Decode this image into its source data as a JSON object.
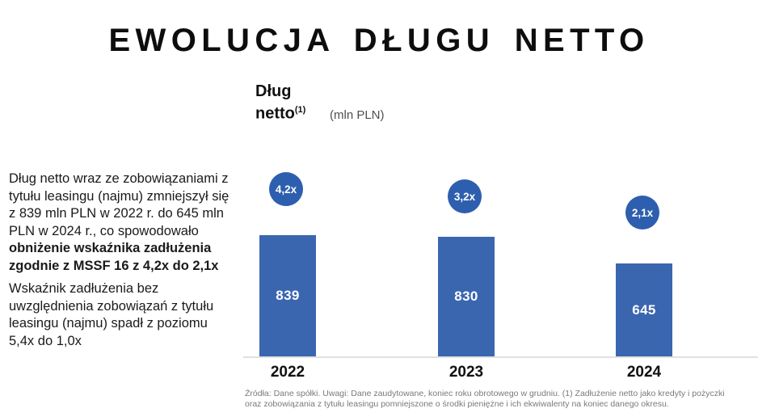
{
  "page": {
    "title": "EWOLUCJA DŁUGU NETTO"
  },
  "commentary": {
    "para1_regular": "Dług netto wraz ze zobowiązaniami z tytułu leasingu (najmu) zmniejszył się z 839 mln PLN w 2022 r. do 645 mln PLN w 2024 r., co spowodowało ",
    "para1_bold": "obniżenie wskaźnika zadłużenia zgodnie z MSSF 16 z 4,2x do 2,1x",
    "para2": "Wskaźnik zadłużenia bez uwzględnienia zobowiązań z tytułu leasingu (najmu) spadł z poziomu 5,4x do 1,0x"
  },
  "chart_header": {
    "label_bold": "Dług netto",
    "label_superscript": "(1)",
    "unit": "(mln PLN)"
  },
  "chart_data": {
    "type": "bar",
    "title": "Dług netto",
    "title_footnote_marker": "(1)",
    "ylabel": "mln PLN",
    "xlabel": "",
    "categories": [
      "2022",
      "2023",
      "2024"
    ],
    "series": [
      {
        "name": "Dług netto (mln PLN)",
        "values": [
          839,
          830,
          645
        ],
        "labels": [
          "839",
          "830",
          "645"
        ]
      },
      {
        "name": "Wskaźnik zadłużenia zgodnie z MSSF 16",
        "values": [
          4.2,
          3.2,
          2.1
        ],
        "labels": [
          "4,2x",
          "3,2x",
          "2,1x"
        ]
      }
    ],
    "ylim": [
      0,
      900
    ],
    "grid": false,
    "legend_position": "none",
    "bar_color": "#3a66b0",
    "badge_color": "#2d5fae",
    "value_label_color": "#ffffff"
  },
  "footnote": {
    "text": "Źródła: Dane spółki. Uwagi: Dane zaudytowane, koniec roku obrotowego w grudniu. (1) Zadłużenie netto jako kredyty i pożyczki oraz zobowiązania z tytułu leasingu pomniejszone o środki pieniężne i ich ekwiwalenty na koniec danego okresu."
  },
  "colors": {
    "bar": "#3a66b0",
    "badge": "#2d5fae",
    "axis": "#e1e1e1",
    "title_text": "#0d0d0d",
    "footnote_text": "#7a7a7a"
  }
}
